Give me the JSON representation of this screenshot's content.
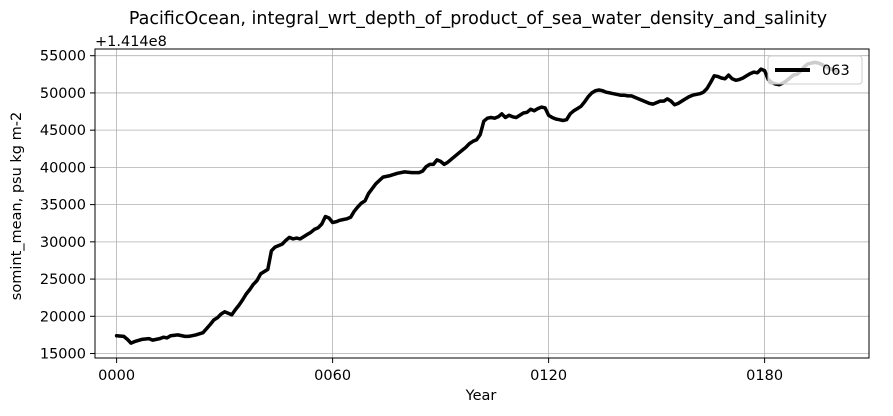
{
  "chart_data": {
    "type": "line",
    "title": "PacificOcean, integral_wrt_depth_of_product_of_sea_water_density_and_salinity",
    "xlabel": "Year",
    "ylabel": "somint_mean, psu kg m-2",
    "offset_label": "+1.414e8",
    "xlim": [
      -6,
      209
    ],
    "ylim": [
      14400,
      55900
    ],
    "x_ticks": [
      0,
      60,
      120,
      180
    ],
    "x_tick_labels": [
      "0000",
      "0060",
      "0120",
      "0180"
    ],
    "y_ticks": [
      15000,
      20000,
      25000,
      30000,
      35000,
      40000,
      45000,
      50000,
      55000
    ],
    "y_tick_labels": [
      "15000",
      "20000",
      "25000",
      "30000",
      "35000",
      "40000",
      "45000",
      "50000",
      "55000"
    ],
    "grid": true,
    "legend": "upper right",
    "series": [
      {
        "name": "063",
        "color": "#000000",
        "x": [
          0,
          2,
          3,
          4,
          5,
          7,
          9,
          10,
          12,
          13,
          14,
          15,
          17,
          19,
          20,
          21,
          22,
          24,
          26,
          27,
          28,
          29,
          30,
          31,
          32,
          33,
          34,
          35,
          36,
          37,
          38,
          39,
          40,
          42,
          43,
          44,
          45,
          46,
          47,
          48,
          49,
          50,
          51,
          52,
          53,
          54,
          55,
          56,
          57,
          58,
          59,
          60,
          61,
          62,
          63,
          64,
          65,
          66,
          67,
          68,
          69,
          70,
          72,
          74,
          76,
          78,
          80,
          82,
          84,
          85,
          86,
          87,
          88,
          89,
          90,
          91,
          92,
          93,
          94,
          95,
          96,
          97,
          98,
          99,
          100,
          101,
          102,
          103,
          104,
          105,
          106,
          107,
          108,
          109,
          110,
          111,
          112,
          113,
          114,
          115,
          116,
          117,
          118,
          119,
          120,
          121,
          122,
          123,
          124,
          125,
          126,
          127,
          128,
          129,
          130,
          131,
          132,
          133,
          134,
          135,
          136,
          137,
          138,
          139,
          140,
          141,
          142,
          143,
          144,
          145,
          146,
          147,
          148,
          149,
          150,
          151,
          152,
          153,
          154,
          155,
          156,
          157,
          158,
          159,
          160,
          161,
          162,
          163,
          164,
          165,
          166,
          167,
          168,
          169,
          170,
          171,
          172,
          173,
          174,
          175,
          176,
          177,
          178,
          179,
          180,
          181,
          182,
          183,
          184,
          185,
          186,
          187,
          188,
          189,
          190,
          191,
          192,
          193,
          194,
          195,
          196,
          197,
          198,
          199,
          200
        ],
        "y": [
          17400,
          17300,
          16900,
          16400,
          16600,
          16900,
          17000,
          16800,
          17000,
          17200,
          17100,
          17400,
          17500,
          17300,
          17300,
          17400,
          17500,
          17800,
          18900,
          19500,
          19800,
          20300,
          20600,
          20400,
          20200,
          20900,
          21500,
          22200,
          23000,
          23600,
          24300,
          24800,
          25700,
          26300,
          28800,
          29300,
          29500,
          29700,
          30200,
          30600,
          30400,
          30500,
          30400,
          30700,
          31000,
          31300,
          31700,
          31900,
          32400,
          33400,
          33200,
          32600,
          32700,
          32900,
          33000,
          33100,
          33300,
          34100,
          34700,
          35200,
          35500,
          36500,
          37800,
          38700,
          38900,
          39200,
          39400,
          39300,
          39300,
          39500,
          40100,
          40400,
          40400,
          41000,
          40800,
          40400,
          40700,
          41100,
          41500,
          41900,
          42300,
          42700,
          43200,
          43500,
          43700,
          44400,
          46200,
          46600,
          46700,
          46600,
          46800,
          47200,
          46700,
          47000,
          46800,
          46700,
          47000,
          47300,
          47400,
          47800,
          47600,
          47900,
          48100,
          48000,
          47000,
          46700,
          46500,
          46400,
          46300,
          46400,
          47200,
          47600,
          47900,
          48200,
          48800,
          49500,
          50000,
          50300,
          50400,
          50300,
          50100,
          50000,
          49900,
          49800,
          49700,
          49700,
          49600,
          49600,
          49400,
          49200,
          49000,
          48800,
          48600,
          48500,
          48700,
          48900,
          48900,
          49200,
          48900,
          48400,
          48600,
          48900,
          49200,
          49500,
          49700,
          49800,
          49900,
          50100,
          50600,
          51400,
          52300,
          52200,
          52000,
          51900,
          52400,
          51900,
          51700,
          51800,
          52000,
          52300,
          52600,
          52800,
          52700,
          53200,
          53000,
          51800,
          51400,
          51200,
          51100,
          51300,
          51600,
          52000,
          52400,
          52500,
          52900,
          53500,
          53900,
          54000,
          54100,
          54000,
          53800,
          53500,
          53300,
          53100,
          52900
        ]
      }
    ]
  }
}
